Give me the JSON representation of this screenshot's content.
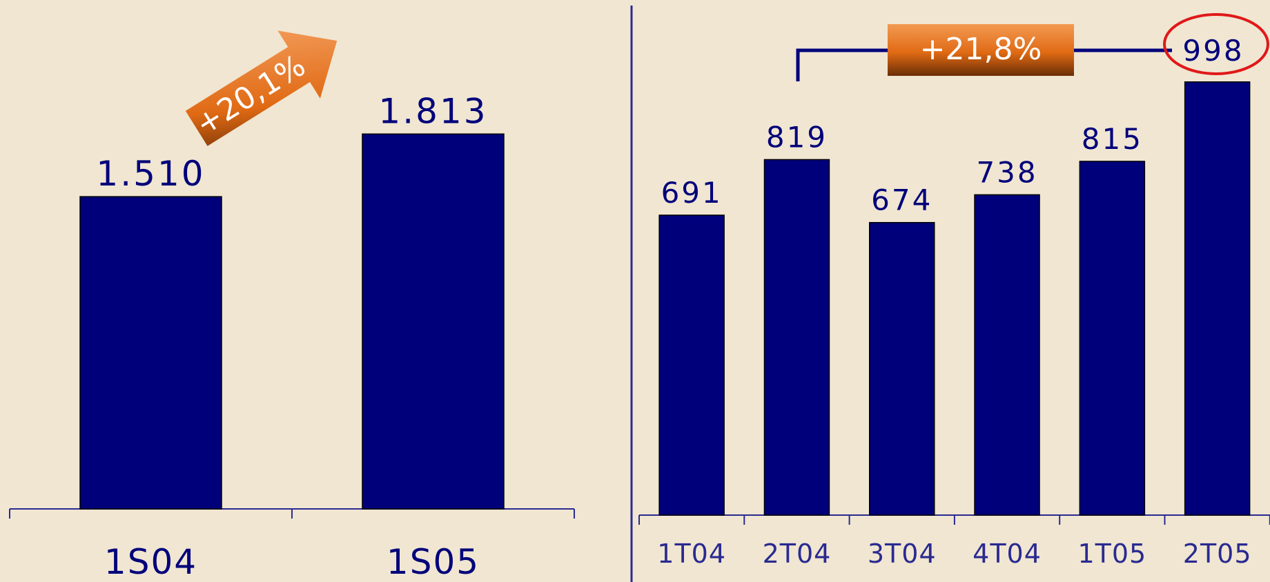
{
  "colors": {
    "background": "#f0e6d2",
    "bar": "#00007a",
    "axis": "#2a2a90",
    "badge": "#e06a14",
    "highlight_ring": "#e01818"
  },
  "chart_data": [
    {
      "type": "bar",
      "categories": [
        "1S04",
        "1S05"
      ],
      "values": [
        1510,
        1813
      ],
      "value_labels": [
        "1.510",
        "1.813"
      ],
      "ylim": [
        0,
        2000
      ],
      "grid": false,
      "annotation": {
        "text": "+20,1%",
        "from": "1S04",
        "to": "1S05",
        "shape": "arrow"
      }
    },
    {
      "type": "bar",
      "categories": [
        "1T04",
        "2T04",
        "3T04",
        "4T04",
        "1T05",
        "2T05"
      ],
      "values": [
        691,
        819,
        674,
        738,
        815,
        998
      ],
      "value_labels": [
        "691",
        "819",
        "674",
        "738",
        "815",
        "998"
      ],
      "ylim": [
        0,
        1050
      ],
      "grid": false,
      "annotation": {
        "text": "+21,8%",
        "from": "2T04",
        "to": "2T05",
        "shape": "bracket",
        "highlight": "2T05"
      }
    }
  ]
}
